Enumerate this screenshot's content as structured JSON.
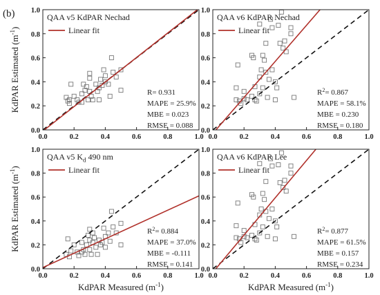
{
  "panel_label": "(b)",
  "colors": {
    "fit": "#b0302a",
    "one_to_one": "#111111",
    "marker": "#777777",
    "axis": "#222222"
  },
  "chart_data": [
    {
      "type": "scatter",
      "title": "QAA v5 KdPAR Nechad",
      "xlabel": "",
      "ylabel": "KdPAR Estimated (m-1)",
      "xlim": [
        0,
        1
      ],
      "ylim": [
        0,
        1
      ],
      "xticks": [
        "0.0",
        "0.2",
        "0.4",
        "0.6",
        "0.8",
        "1.0"
      ],
      "yticks": [
        "0.0",
        "0.2",
        "0.4",
        "0.6",
        "0.8",
        "1.0"
      ],
      "legend": "Linear fit",
      "fit": {
        "slope": 1.02,
        "intercept": -0.01
      },
      "stats": [
        "R= 0.931",
        "MAPE = 25.9%",
        "MBE = 0.023",
        "RMSE = 0.088"
      ],
      "points": [
        [
          0.15,
          0.27
        ],
        [
          0.16,
          0.24
        ],
        [
          0.17,
          0.25
        ],
        [
          0.17,
          0.22
        ],
        [
          0.18,
          0.38
        ],
        [
          0.2,
          0.28
        ],
        [
          0.22,
          0.25
        ],
        [
          0.23,
          0.23
        ],
        [
          0.25,
          0.3
        ],
        [
          0.25,
          0.23
        ],
        [
          0.26,
          0.38
        ],
        [
          0.27,
          0.33
        ],
        [
          0.28,
          0.36
        ],
        [
          0.29,
          0.25
        ],
        [
          0.3,
          0.47
        ],
        [
          0.3,
          0.43
        ],
        [
          0.3,
          0.32
        ],
        [
          0.31,
          0.28
        ],
        [
          0.32,
          0.25
        ],
        [
          0.34,
          0.38
        ],
        [
          0.35,
          0.32
        ],
        [
          0.36,
          0.25
        ],
        [
          0.36,
          0.35
        ],
        [
          0.37,
          0.42
        ],
        [
          0.38,
          0.37
        ],
        [
          0.39,
          0.5
        ],
        [
          0.4,
          0.4
        ],
        [
          0.4,
          0.45
        ],
        [
          0.42,
          0.38
        ],
        [
          0.43,
          0.28
        ],
        [
          0.44,
          0.6
        ],
        [
          0.45,
          0.48
        ],
        [
          0.47,
          0.44
        ],
        [
          0.5,
          0.5
        ],
        [
          0.5,
          0.33
        ]
      ]
    },
    {
      "type": "scatter",
      "title": "QAA v6 KdPAR Nechad",
      "xlabel": "",
      "ylabel": "",
      "xlim": [
        0,
        1
      ],
      "ylim": [
        0,
        1
      ],
      "xticks": [
        "0.0",
        "0.2",
        "0.4",
        "0.6",
        "0.8",
        "1.0"
      ],
      "yticks": [
        "0.0",
        "0.2",
        "0.4",
        "0.6",
        "0.8",
        "1.0"
      ],
      "legend": "Linear fit",
      "fit": {
        "slope": 1.5,
        "intercept": -0.03
      },
      "stats": [
        "R2= 0.867",
        "MAPE = 58.1%",
        "MBE = 0.230",
        "RMSE = 0.180"
      ],
      "points": [
        [
          0.15,
          0.35
        ],
        [
          0.15,
          0.25
        ],
        [
          0.16,
          0.54
        ],
        [
          0.17,
          0.24
        ],
        [
          0.18,
          0.22
        ],
        [
          0.2,
          0.26
        ],
        [
          0.2,
          0.32
        ],
        [
          0.22,
          0.25
        ],
        [
          0.25,
          0.62
        ],
        [
          0.25,
          0.28
        ],
        [
          0.26,
          0.6
        ],
        [
          0.27,
          0.25
        ],
        [
          0.27,
          0.36
        ],
        [
          0.28,
          0.24
        ],
        [
          0.3,
          0.88
        ],
        [
          0.3,
          0.44
        ],
        [
          0.3,
          0.3
        ],
        [
          0.31,
          0.5
        ],
        [
          0.32,
          0.62
        ],
        [
          0.32,
          0.35
        ],
        [
          0.33,
          0.58
        ],
        [
          0.34,
          0.72
        ],
        [
          0.34,
          0.48
        ],
        [
          0.35,
          0.27
        ],
        [
          0.36,
          0.42
        ],
        [
          0.37,
          0.92
        ],
        [
          0.38,
          0.5
        ],
        [
          0.38,
          0.85
        ],
        [
          0.4,
          0.4
        ],
        [
          0.4,
          0.25
        ],
        [
          0.41,
          0.35
        ],
        [
          0.42,
          0.87
        ],
        [
          0.43,
          0.72
        ],
        [
          0.44,
          0.98
        ],
        [
          0.45,
          0.68
        ],
        [
          0.46,
          0.74
        ],
        [
          0.47,
          0.65
        ],
        [
          0.5,
          0.8
        ],
        [
          0.5,
          0.85
        ],
        [
          0.52,
          0.27
        ]
      ]
    },
    {
      "type": "scatter",
      "title": "QAA v5 Kd 490 nm",
      "xlabel": "KdPAR Measured (m-1)",
      "ylabel": "KdPAR Estimated (m-1)",
      "xlim": [
        0,
        1
      ],
      "ylim": [
        0,
        1
      ],
      "xticks": [
        "0.0",
        "0.2",
        "0.4",
        "0.6",
        "0.8",
        "1.0"
      ],
      "yticks": [
        "0.0",
        "0.2",
        "0.4",
        "0.6",
        "0.8",
        "1.0"
      ],
      "legend": "Linear fit",
      "fit": {
        "slope": 0.6,
        "intercept": 0.01
      },
      "stats": [
        "R2= 0.884",
        "MAPE = 37.0%",
        "MBE = -0.111",
        "RMSE = 0.141"
      ],
      "points": [
        [
          0.15,
          0.12
        ],
        [
          0.16,
          0.25
        ],
        [
          0.17,
          0.1
        ],
        [
          0.18,
          0.15
        ],
        [
          0.2,
          0.2
        ],
        [
          0.22,
          0.14
        ],
        [
          0.23,
          0.11
        ],
        [
          0.25,
          0.14
        ],
        [
          0.25,
          0.22
        ],
        [
          0.26,
          0.16
        ],
        [
          0.27,
          0.12
        ],
        [
          0.28,
          0.2
        ],
        [
          0.29,
          0.28
        ],
        [
          0.3,
          0.33
        ],
        [
          0.3,
          0.24
        ],
        [
          0.3,
          0.16
        ],
        [
          0.31,
          0.12
        ],
        [
          0.32,
          0.22
        ],
        [
          0.32,
          0.3
        ],
        [
          0.33,
          0.26
        ],
        [
          0.34,
          0.18
        ],
        [
          0.35,
          0.12
        ],
        [
          0.36,
          0.24
        ],
        [
          0.37,
          0.2
        ],
        [
          0.38,
          0.22
        ],
        [
          0.39,
          0.34
        ],
        [
          0.4,
          0.27
        ],
        [
          0.4,
          0.18
        ],
        [
          0.42,
          0.3
        ],
        [
          0.43,
          0.23
        ],
        [
          0.44,
          0.48
        ],
        [
          0.45,
          0.35
        ],
        [
          0.47,
          0.3
        ],
        [
          0.5,
          0.38
        ],
        [
          0.5,
          0.2
        ]
      ]
    },
    {
      "type": "scatter",
      "title": "QAA v6 KdPAR Lee",
      "xlabel": "KdPAR Measured (m-1)",
      "ylabel": "",
      "xlim": [
        0,
        1
      ],
      "ylim": [
        0,
        1
      ],
      "xticks": [
        "0.0",
        "0.2",
        "0.4",
        "0.6",
        "0.8",
        "1.0"
      ],
      "yticks": [
        "0.0",
        "0.2",
        "0.4",
        "0.6",
        "0.8",
        "1.0"
      ],
      "legend": "Linear fit",
      "fit": {
        "slope": 1.56,
        "intercept": -0.03
      },
      "stats": [
        "R2= 0.877",
        "MAPE = 61.5%",
        "MBE = 0.157",
        "RMSE = 0.234"
      ],
      "points": [
        [
          0.15,
          0.36
        ],
        [
          0.15,
          0.26
        ],
        [
          0.16,
          0.55
        ],
        [
          0.17,
          0.25
        ],
        [
          0.18,
          0.22
        ],
        [
          0.2,
          0.27
        ],
        [
          0.2,
          0.32
        ],
        [
          0.22,
          0.26
        ],
        [
          0.25,
          0.62
        ],
        [
          0.25,
          0.28
        ],
        [
          0.26,
          0.6
        ],
        [
          0.27,
          0.25
        ],
        [
          0.27,
          0.37
        ],
        [
          0.28,
          0.24
        ],
        [
          0.3,
          0.88
        ],
        [
          0.3,
          0.45
        ],
        [
          0.3,
          0.3
        ],
        [
          0.31,
          0.5
        ],
        [
          0.32,
          0.63
        ],
        [
          0.32,
          0.35
        ],
        [
          0.33,
          0.58
        ],
        [
          0.34,
          0.73
        ],
        [
          0.34,
          0.48
        ],
        [
          0.35,
          0.27
        ],
        [
          0.36,
          0.42
        ],
        [
          0.37,
          0.92
        ],
        [
          0.38,
          0.5
        ],
        [
          0.38,
          0.86
        ],
        [
          0.4,
          0.4
        ],
        [
          0.4,
          0.25
        ],
        [
          0.41,
          0.35
        ],
        [
          0.42,
          0.87
        ],
        [
          0.43,
          0.72
        ],
        [
          0.44,
          0.97
        ],
        [
          0.45,
          0.68
        ],
        [
          0.46,
          0.74
        ],
        [
          0.47,
          0.65
        ],
        [
          0.5,
          0.8
        ],
        [
          0.5,
          0.86
        ],
        [
          0.52,
          0.27
        ]
      ]
    }
  ]
}
